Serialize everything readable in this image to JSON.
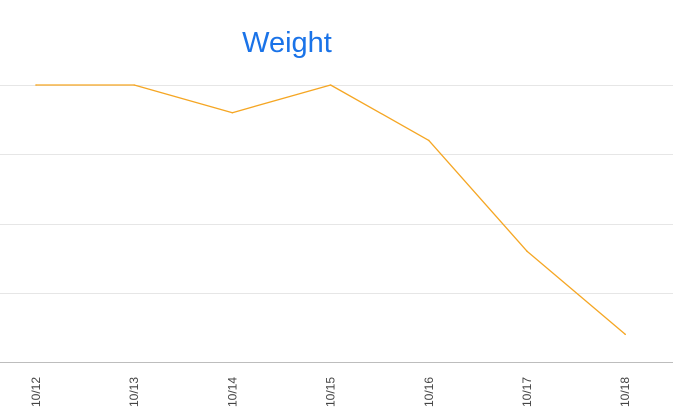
{
  "chart_data": {
    "type": "line",
    "title": "Weight",
    "xlabel": "",
    "ylabel": "",
    "categories": [
      "10/12",
      "10/13",
      "10/14",
      "10/15",
      "10/16",
      "10/17",
      "10/18"
    ],
    "series": [
      {
        "values": [
          4.0,
          4.0,
          3.6,
          4.0,
          3.2,
          1.6,
          0.4
        ]
      }
    ],
    "ylim": [
      0,
      4
    ],
    "grid": true,
    "colors": {
      "title": "#1a73e8",
      "line": "#f5a623",
      "grid": "#e6e6e6",
      "baseline": "#bdbdbd",
      "tick_text": "#444444"
    }
  }
}
